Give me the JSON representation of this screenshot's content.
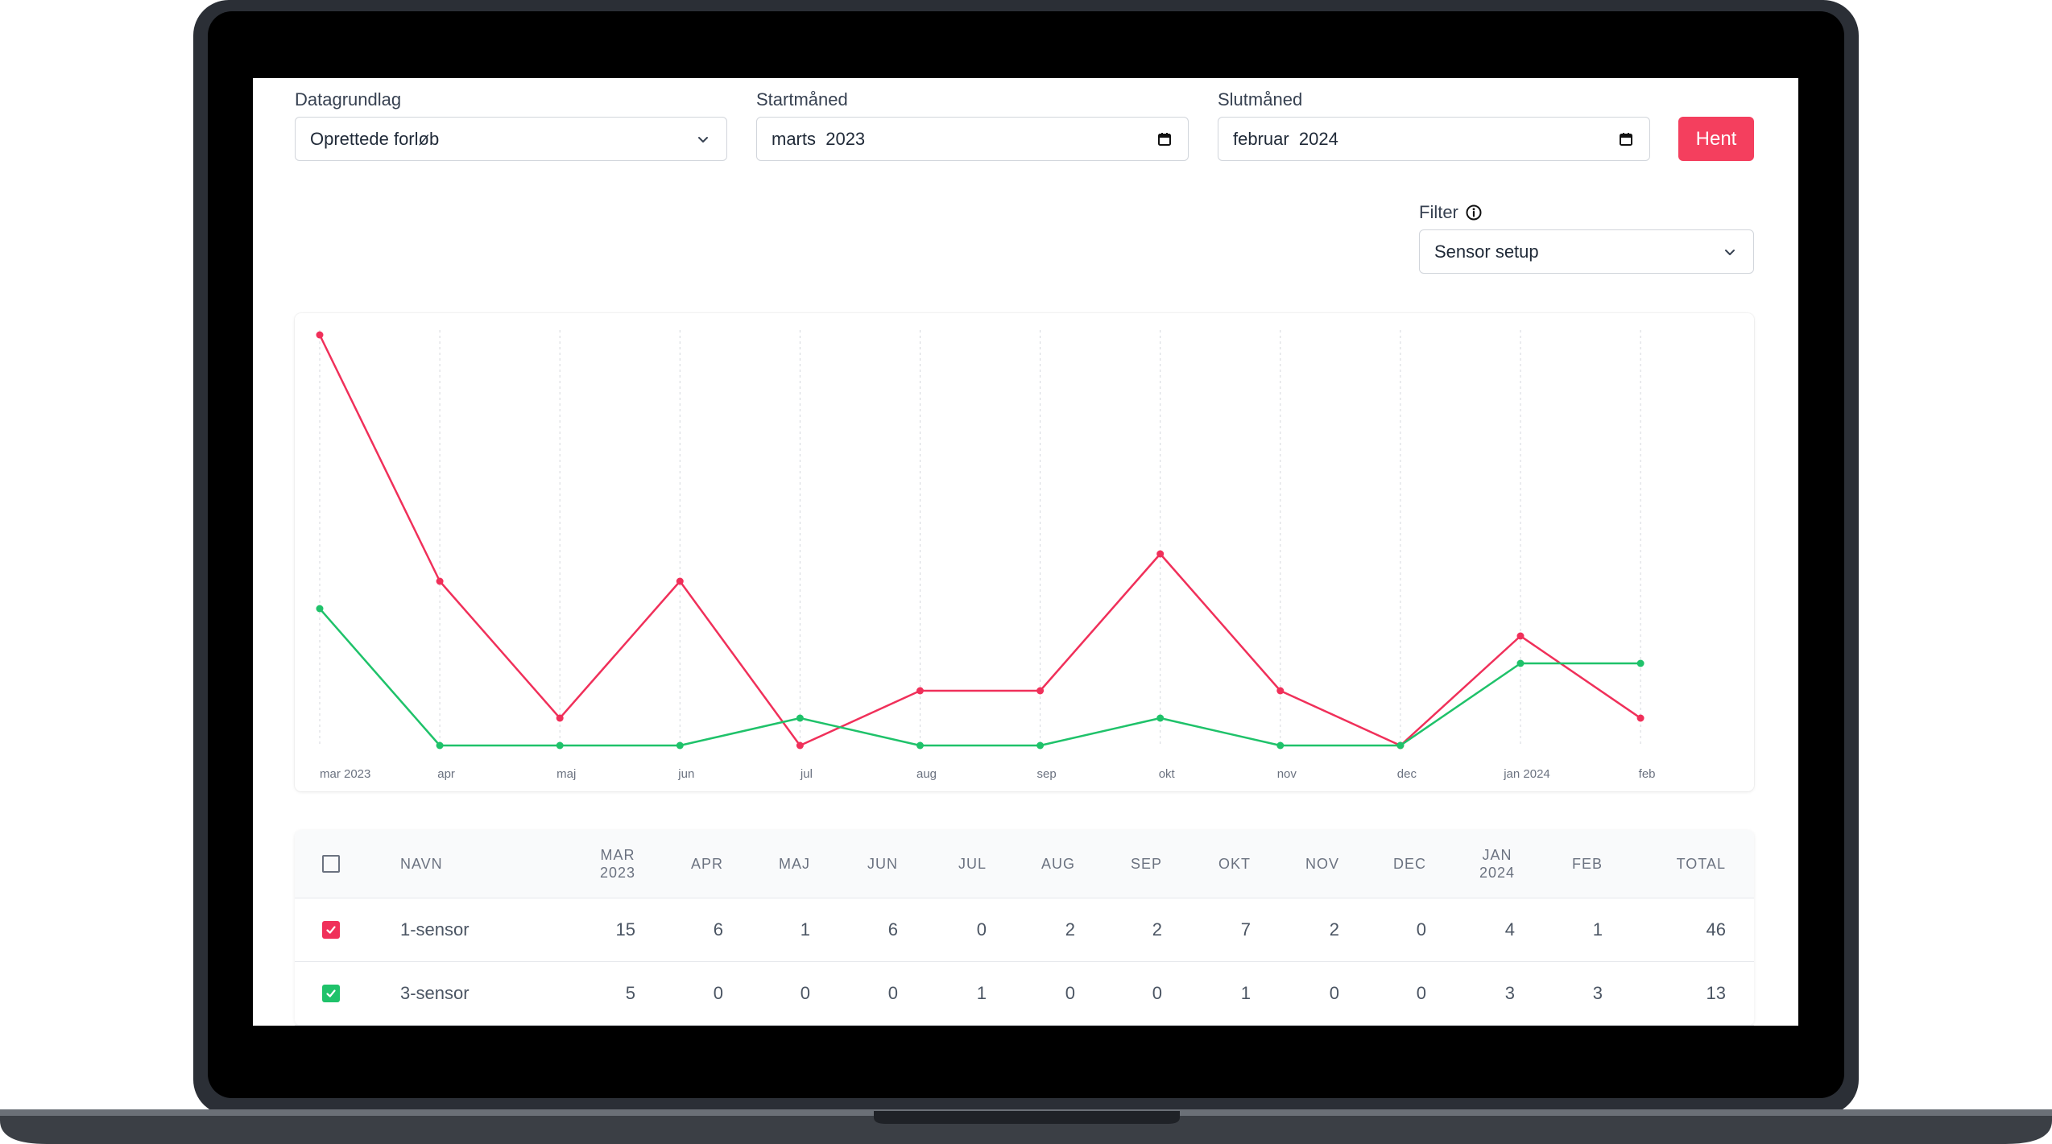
{
  "form": {
    "datagrundlag": {
      "label": "Datagrundlag",
      "value": "Oprettede forløb"
    },
    "startmaaned": {
      "label": "Startmåned",
      "value": "marts  2023"
    },
    "slutmaaned": {
      "label": "Slutmåned",
      "value": "februar  2024"
    },
    "fetch_label": "Hent",
    "filter": {
      "label": "Filter",
      "value": "Sensor setup"
    }
  },
  "colors": {
    "accent": "#f43f5e",
    "series_1": "#f0305a",
    "series_2": "#1fc26a"
  },
  "icons": {
    "dropdown": "chevron-down-icon",
    "calendar": "calendar-icon",
    "info": "info-icon",
    "check": "check-icon"
  },
  "chart_data": {
    "type": "line",
    "categories": [
      "mar 2023",
      "apr",
      "maj",
      "jun",
      "jul",
      "aug",
      "sep",
      "okt",
      "nov",
      "dec",
      "jan 2024",
      "feb"
    ],
    "series": [
      {
        "name": "1-sensor",
        "color": "#f0305a",
        "values": [
          15,
          6,
          1,
          6,
          0,
          2,
          2,
          7,
          2,
          0,
          4,
          1
        ]
      },
      {
        "name": "3-sensor",
        "color": "#1fc26a",
        "values": [
          5,
          0,
          0,
          0,
          1,
          0,
          0,
          1,
          0,
          0,
          3,
          3
        ]
      }
    ],
    "ylim": [
      0,
      15
    ],
    "grid": "vertical-dotted"
  },
  "table": {
    "headers": [
      {
        "l1": "",
        "l2": "NAVN"
      },
      {
        "l1": "MAR",
        "l2": "2023"
      },
      {
        "l1": "",
        "l2": "APR"
      },
      {
        "l1": "",
        "l2": "MAJ"
      },
      {
        "l1": "",
        "l2": "JUN"
      },
      {
        "l1": "",
        "l2": "JUL"
      },
      {
        "l1": "",
        "l2": "AUG"
      },
      {
        "l1": "",
        "l2": "SEP"
      },
      {
        "l1": "",
        "l2": "OKT"
      },
      {
        "l1": "",
        "l2": "NOV"
      },
      {
        "l1": "",
        "l2": "DEC"
      },
      {
        "l1": "JAN",
        "l2": "2024"
      },
      {
        "l1": "",
        "l2": "FEB"
      },
      {
        "l1": "",
        "l2": "TOTAL"
      }
    ],
    "rows": [
      {
        "name": "1-sensor",
        "checked": true,
        "color": "#f0305a",
        "values": [
          "15",
          "6",
          "1",
          "6",
          "0",
          "2",
          "2",
          "7",
          "2",
          "0",
          "4",
          "1"
        ],
        "total": "46"
      },
      {
        "name": "3-sensor",
        "checked": true,
        "color": "#1fc26a",
        "values": [
          "5",
          "0",
          "0",
          "0",
          "1",
          "0",
          "0",
          "1",
          "0",
          "0",
          "3",
          "3"
        ],
        "total": "13"
      }
    ]
  }
}
